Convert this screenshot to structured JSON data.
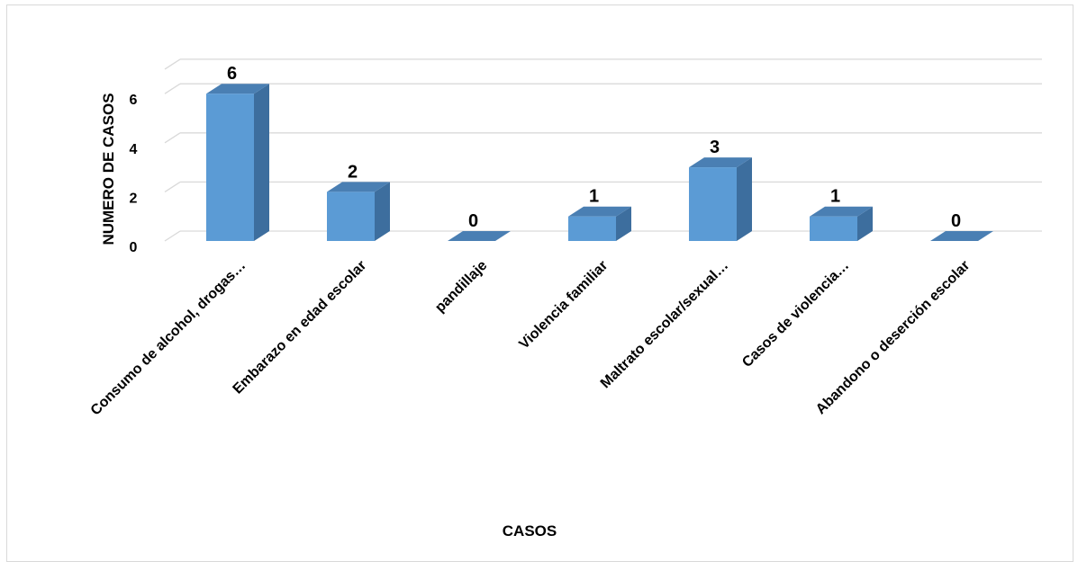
{
  "chart_data": {
    "type": "bar",
    "style": "3d-column",
    "categories": [
      "Consumo de alcohol, drogas…",
      "Embarazo en edad escolar",
      "pandillaje",
      "Violencia familiar",
      "Maltrato escolar/sexual…",
      "Casos de violencia…",
      "Abandono o deserción escolar"
    ],
    "values": [
      6,
      2,
      0,
      1,
      3,
      1,
      0
    ],
    "xlabel": "CASOS",
    "ylabel": "NUMERO DE CASOS",
    "ylim": [
      0,
      6
    ],
    "yticks": [
      "0",
      "2",
      "4",
      "6"
    ],
    "grid": true,
    "legend": "none",
    "colors": {
      "bar_front": "#5b9bd5",
      "bar_side": "#3d6e9e",
      "bar_top": "#4a7fb3",
      "gridline": "#d9d9d9"
    }
  }
}
